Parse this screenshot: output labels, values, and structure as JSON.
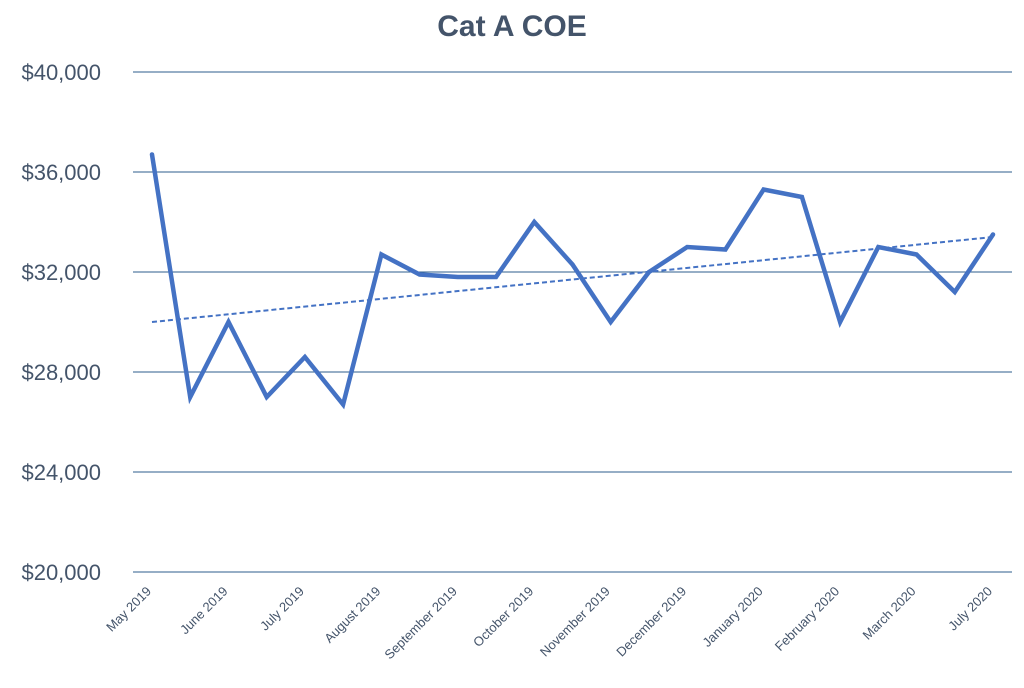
{
  "chart_data": {
    "type": "line",
    "title": "Cat A COE",
    "xlabel": "",
    "ylabel": "",
    "ylim": [
      20000,
      40000
    ],
    "yticks": [
      20000,
      24000,
      28000,
      32000,
      36000,
      40000
    ],
    "ytick_labels": [
      "$20,000",
      "$24,000",
      "$28,000",
      "$32,000",
      "$36,000",
      "$40,000"
    ],
    "x_tick_labels": [
      "May 2019",
      "June 2019",
      "July 2019",
      "August 2019",
      "September 2019",
      "October 2019",
      "November 2019",
      "December 2019",
      "January 2020",
      "February 2020",
      "March 2020",
      "July 2020"
    ],
    "grid": true,
    "colors": {
      "series": "#4472C4",
      "trend": "#4472C4",
      "grid": "#2E5E8C",
      "text": "#44546A"
    },
    "series": [
      {
        "values": [
          36700,
          27000,
          30000,
          27000,
          28600,
          26700,
          32700,
          31900,
          31800,
          31800,
          34000,
          32300,
          30000,
          32000,
          33000,
          32900,
          35300,
          35000,
          30000,
          33000,
          32700,
          31200,
          33500
        ]
      }
    ],
    "trendline": {
      "type": "linear",
      "start": 30000,
      "end": 33400
    }
  }
}
